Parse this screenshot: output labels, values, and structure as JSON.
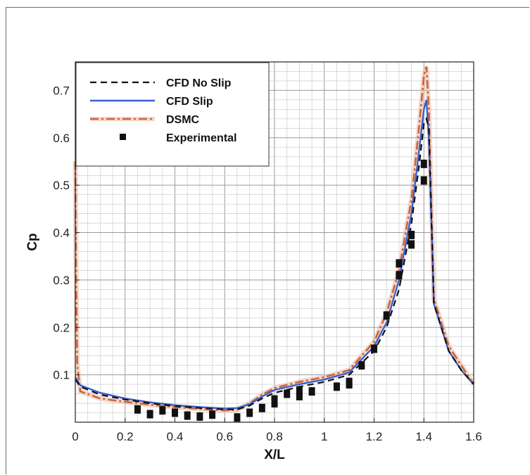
{
  "chart_data": {
    "type": "line",
    "title": "",
    "xlabel": "X/L",
    "ylabel": "Cp",
    "xlim": [
      0,
      1.6
    ],
    "ylim": [
      0,
      0.76
    ],
    "xticks": [
      "0",
      "0.2",
      "0.4",
      "0.6",
      "0.8",
      "1",
      "1.2",
      "1.4",
      "1.6"
    ],
    "yticks": [
      "0.1",
      "0.2",
      "0.3",
      "0.4",
      "0.5",
      "0.6",
      "0.7"
    ],
    "grid": true,
    "legend_position": "top-left",
    "series": [
      {
        "name": "CFD No Slip",
        "style": "dashed",
        "color": "#111111",
        "points": [
          [
            0.0,
            0.09
          ],
          [
            0.02,
            0.075
          ],
          [
            0.1,
            0.058
          ],
          [
            0.2,
            0.048
          ],
          [
            0.3,
            0.04
          ],
          [
            0.4,
            0.034
          ],
          [
            0.5,
            0.03
          ],
          [
            0.6,
            0.027
          ],
          [
            0.65,
            0.027
          ],
          [
            0.7,
            0.035
          ],
          [
            0.75,
            0.05
          ],
          [
            0.8,
            0.062
          ],
          [
            0.9,
            0.075
          ],
          [
            1.0,
            0.085
          ],
          [
            1.1,
            0.1
          ],
          [
            1.2,
            0.15
          ],
          [
            1.25,
            0.2
          ],
          [
            1.3,
            0.28
          ],
          [
            1.35,
            0.42
          ],
          [
            1.38,
            0.54
          ],
          [
            1.4,
            0.63
          ],
          [
            1.41,
            0.64
          ],
          [
            1.42,
            0.62
          ],
          [
            1.44,
            0.25
          ],
          [
            1.5,
            0.15
          ],
          [
            1.55,
            0.11
          ],
          [
            1.6,
            0.08
          ]
        ]
      },
      {
        "name": "CFD Slip",
        "style": "solid",
        "color": "#3a5fcd",
        "points": [
          [
            0.0,
            0.095
          ],
          [
            0.02,
            0.078
          ],
          [
            0.1,
            0.062
          ],
          [
            0.2,
            0.05
          ],
          [
            0.3,
            0.042
          ],
          [
            0.4,
            0.036
          ],
          [
            0.5,
            0.032
          ],
          [
            0.6,
            0.029
          ],
          [
            0.65,
            0.03
          ],
          [
            0.7,
            0.038
          ],
          [
            0.75,
            0.054
          ],
          [
            0.8,
            0.068
          ],
          [
            0.9,
            0.08
          ],
          [
            1.0,
            0.09
          ],
          [
            1.1,
            0.105
          ],
          [
            1.2,
            0.16
          ],
          [
            1.25,
            0.21
          ],
          [
            1.3,
            0.3
          ],
          [
            1.35,
            0.44
          ],
          [
            1.38,
            0.57
          ],
          [
            1.4,
            0.66
          ],
          [
            1.41,
            0.68
          ],
          [
            1.42,
            0.6
          ],
          [
            1.44,
            0.25
          ],
          [
            1.5,
            0.15
          ],
          [
            1.55,
            0.11
          ],
          [
            1.6,
            0.08
          ]
        ]
      },
      {
        "name": "DSMC",
        "style": "dash-dot",
        "color": "#c8663c",
        "points": [
          [
            0.0,
            0.55
          ],
          [
            0.003,
            0.3
          ],
          [
            0.008,
            0.12
          ],
          [
            0.02,
            0.065
          ],
          [
            0.1,
            0.05
          ],
          [
            0.2,
            0.043
          ],
          [
            0.3,
            0.037
          ],
          [
            0.4,
            0.032
          ],
          [
            0.5,
            0.028
          ],
          [
            0.6,
            0.025
          ],
          [
            0.65,
            0.026
          ],
          [
            0.7,
            0.04
          ],
          [
            0.75,
            0.058
          ],
          [
            0.8,
            0.072
          ],
          [
            0.9,
            0.085
          ],
          [
            1.0,
            0.095
          ],
          [
            1.1,
            0.11
          ],
          [
            1.2,
            0.17
          ],
          [
            1.25,
            0.23
          ],
          [
            1.3,
            0.32
          ],
          [
            1.35,
            0.47
          ],
          [
            1.38,
            0.62
          ],
          [
            1.4,
            0.73
          ],
          [
            1.41,
            0.75
          ],
          [
            1.42,
            0.66
          ],
          [
            1.44,
            0.26
          ],
          [
            1.5,
            0.16
          ],
          [
            1.55,
            0.12
          ],
          [
            1.6,
            0.08
          ]
        ]
      },
      {
        "name": "Experimental",
        "style": "markers",
        "color": "#111111",
        "points": [
          [
            0.25,
            0.027
          ],
          [
            0.3,
            0.017
          ],
          [
            0.35,
            0.025
          ],
          [
            0.4,
            0.02
          ],
          [
            0.45,
            0.014
          ],
          [
            0.5,
            0.012
          ],
          [
            0.55,
            0.016
          ],
          [
            0.65,
            0.01
          ],
          [
            0.7,
            0.02
          ],
          [
            0.75,
            0.03
          ],
          [
            0.8,
            0.04
          ],
          [
            0.8,
            0.048
          ],
          [
            0.85,
            0.06
          ],
          [
            0.9,
            0.055
          ],
          [
            0.9,
            0.067
          ],
          [
            0.95,
            0.065
          ],
          [
            1.05,
            0.075
          ],
          [
            1.1,
            0.085
          ],
          [
            1.1,
            0.08
          ],
          [
            1.15,
            0.12
          ],
          [
            1.2,
            0.155
          ],
          [
            1.25,
            0.225
          ],
          [
            1.3,
            0.31
          ],
          [
            1.3,
            0.335
          ],
          [
            1.35,
            0.375
          ],
          [
            1.35,
            0.395
          ],
          [
            1.4,
            0.51
          ],
          [
            1.4,
            0.545
          ]
        ]
      }
    ]
  }
}
